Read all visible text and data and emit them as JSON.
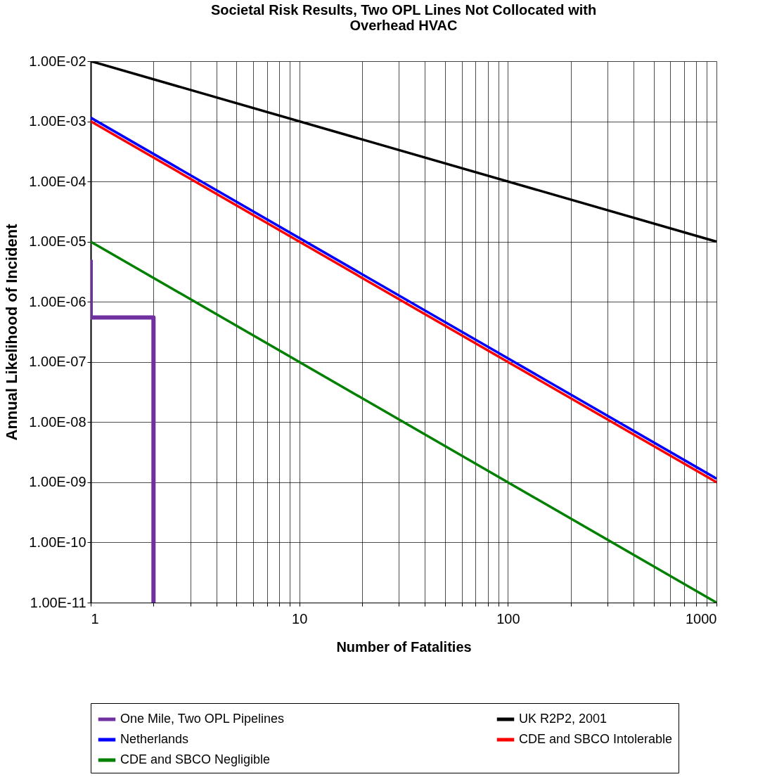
{
  "chart_data": {
    "type": "line",
    "title": "Societal Risk Results, Two OPL Lines Not Collocated with Overhead HVAC",
    "xlabel": "Number of Fatalities",
    "ylabel": "Annual Likelihood of Incident",
    "log": "xy",
    "grid": true,
    "legend": "bottom",
    "line_style": "solid",
    "marker": "none",
    "xlim": [
      1,
      1000
    ],
    "ylim": [
      1e-11,
      0.01
    ],
    "xticks": [
      1,
      {
        "value": 2,
        "label": null
      },
      {
        "value": 3,
        "label": null
      },
      {
        "value": 4,
        "label": null
      },
      {
        "value": 5,
        "label": null
      },
      {
        "value": 6,
        "label": null
      },
      {
        "value": 7,
        "label": null
      },
      {
        "value": 8,
        "label": null
      },
      {
        "value": 9,
        "label": null
      },
      10,
      {
        "value": 20,
        "label": null
      },
      {
        "value": 30,
        "label": null
      },
      {
        "value": 40,
        "label": null
      },
      {
        "value": 50,
        "label": null
      },
      {
        "value": 60,
        "label": null
      },
      {
        "value": 70,
        "label": null
      },
      {
        "value": 80,
        "label": null
      },
      {
        "value": 90,
        "label": null
      },
      100,
      {
        "value": 200,
        "label": null
      },
      {
        "value": 300,
        "label": null
      },
      {
        "value": 400,
        "label": null
      },
      {
        "value": 500,
        "label": null
      },
      {
        "value": 600,
        "label": null
      },
      {
        "value": 700,
        "label": null
      },
      {
        "value": 800,
        "label": null
      },
      {
        "value": 900,
        "label": null
      },
      1000
    ],
    "yticks": [
      {
        "value": 1e-11,
        "label": "1.00E-11"
      },
      {
        "value": 1e-10,
        "label": "1.00E-10"
      },
      {
        "value": 1e-09,
        "label": "1.00E-09"
      },
      {
        "value": 1e-08,
        "label": "1.00E-08"
      },
      {
        "value": 1e-07,
        "label": "1.00E-07"
      },
      {
        "value": 1e-06,
        "label": "1.00E-06"
      },
      {
        "value": 1e-05,
        "label": "1.00E-05"
      },
      {
        "value": 0.0001,
        "label": "1.00E-04"
      },
      {
        "value": 0.001,
        "label": "1.00E-03"
      },
      {
        "value": 0.01,
        "label": "1.00E-02"
      }
    ],
    "series": [
      {
        "name": "One Mile, Two OPL Pipelines",
        "color": "#7030a0",
        "x": [
          1,
          1,
          2,
          2
        ],
        "values": [
          5e-06,
          5.5e-07,
          5.5e-07,
          1e-11
        ]
      },
      {
        "name": "UK R2P2, 2001",
        "color": "#000000",
        "x": [
          1,
          1000
        ],
        "values": [
          0.01,
          1e-05
        ]
      },
      {
        "name": "Netherlands",
        "color": "#0000ff",
        "x": [
          1,
          1000
        ],
        "values": [
          0.00115,
          1.15e-09
        ]
      },
      {
        "name": "CDE and SBCO Intolerable",
        "color": "#ff0000",
        "x": [
          1,
          1000
        ],
        "values": [
          0.001,
          1e-09
        ]
      },
      {
        "name": "CDE and SBCO Negligible",
        "color": "#008000",
        "x": [
          1,
          1000
        ],
        "values": [
          1e-05,
          1e-11
        ]
      }
    ]
  }
}
